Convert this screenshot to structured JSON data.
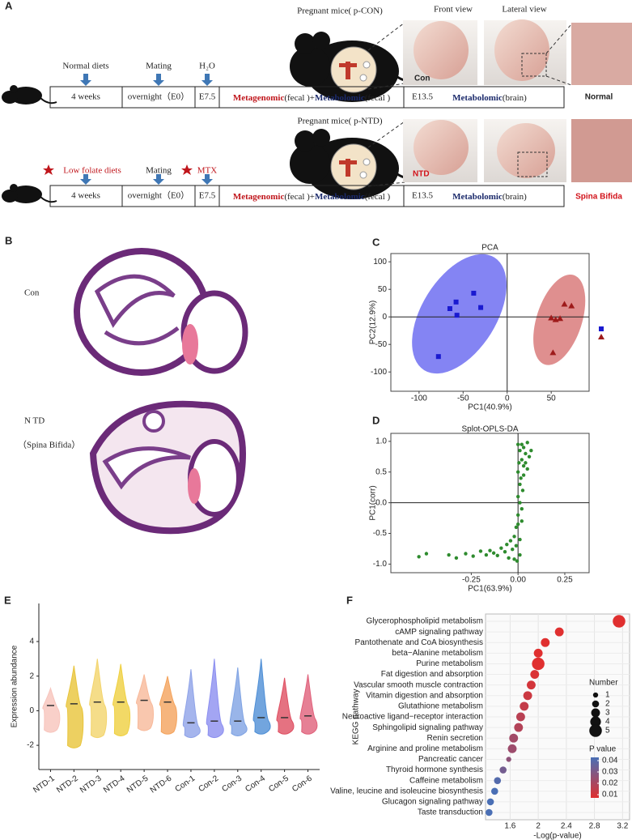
{
  "panel_a": {
    "label": "A",
    "views": [
      "Front view",
      "Lateral view"
    ],
    "top": {
      "title": "Pregnant mice( p-CON)",
      "steps": [
        "Normal diets",
        "Mating",
        "H₂O"
      ],
      "cells": [
        "4 weeks",
        "overnight（E0）",
        "E7.5"
      ],
      "metagenomic": "Metagenomic",
      "fecal_plus": "(fecal )+",
      "metabolomic": "Metabolomic",
      "fecal": "(fecal )",
      "e135": "E13.5",
      "metabolomic_brain": "Metabolomic",
      "brain": "(brain)",
      "photo_label": "Con",
      "outcome": "Normal"
    },
    "bottom": {
      "title": "Pregnant mice( p-NTD)",
      "steps": [
        "Low folate diets",
        "Mating",
        "MTX"
      ],
      "cells": [
        "4 weeks",
        "overnight（E0）",
        "E7.5"
      ],
      "metagenomic": "Metagenomic",
      "fecal_plus": "(fecal )+",
      "metabolomic": "Metabolomic",
      "fecal": "(fecal )",
      "e135": "E13.5",
      "metabolomic_brain": "Metabolomic",
      "brain": "(brain)",
      "photo_label": "NTD",
      "outcome": "Spina Bifida"
    }
  },
  "panel_b": {
    "label": "B",
    "con": "Con",
    "ntd": "N TD",
    "ntd_note": "（Spina Bifida）"
  },
  "chart_data": [
    {
      "type": "scatter",
      "panel": "C",
      "title": "PCA",
      "xlabel": "PC1(40.9%)",
      "ylabel": "PC2(12.9%)",
      "xlim": [
        -132,
        93
      ],
      "ylim": [
        -135,
        115
      ],
      "xticks": [
        -100,
        -50,
        0,
        50
      ],
      "yticks": [
        -100,
        -50,
        0,
        50,
        100
      ],
      "series": [
        {
          "marker": "square",
          "color": "#1a1ad0",
          "area_color": "#5b5bef",
          "x": [
            -78,
            -65,
            -58,
            -57,
            -38,
            -30
          ],
          "y": [
            -72,
            15,
            27,
            3,
            43,
            17
          ]
        },
        {
          "marker": "triangle",
          "color": "#9e1b1b",
          "area_color": "#d46a6a",
          "x": [
            50,
            52,
            55,
            60,
            65,
            73
          ],
          "y": [
            -2,
            -65,
            -5,
            -3,
            23,
            20
          ]
        }
      ]
    },
    {
      "type": "scatter",
      "panel": "D",
      "title": "Splot-OPLS-DA",
      "xlabel": "PC1(63.9%)",
      "ylabel": "PC1(corr)",
      "xlim": [
        -0.68,
        0.38
      ],
      "ylim": [
        -1.14,
        1.13
      ],
      "xticks": [
        {
          "value": -0.25,
          "label": "-0.25"
        },
        {
          "value": 0,
          "label": "0.00"
        },
        {
          "value": 0.25,
          "label": "0.25"
        }
      ],
      "yticks": [
        {
          "value": -1,
          "label": "-1.0"
        },
        {
          "value": -0.5,
          "label": "-0.5"
        },
        {
          "value": 0,
          "label": "0.0"
        },
        {
          "value": 0.5,
          "label": "0.5"
        },
        {
          "value": 1,
          "label": "1.0"
        }
      ],
      "series": [
        {
          "marker": "circle",
          "color": "#2e8b2e",
          "x": [
            -0.53,
            -0.49,
            -0.37,
            -0.33,
            -0.28,
            -0.24,
            -0.2,
            -0.17,
            -0.15,
            -0.13,
            -0.11,
            -0.09,
            -0.07,
            -0.06,
            -0.05,
            -0.04,
            -0.03,
            -0.02,
            -0.02,
            -0.01,
            -0.01,
            0,
            0,
            0,
            0.01,
            0.01,
            0.02,
            0.02,
            0.03,
            0.03,
            0.04,
            0.05,
            0.06,
            0.07,
            0.05,
            0.02,
            0.01,
            -0.005,
            0,
            0.015,
            0.025,
            0.04,
            0.01,
            0,
            0.02,
            0.005,
            0.01,
            0.03
          ],
          "y": [
            -0.88,
            -0.83,
            -0.85,
            -0.9,
            -0.83,
            -0.87,
            -0.79,
            -0.85,
            -0.78,
            -0.82,
            -0.86,
            -0.74,
            -0.8,
            -0.68,
            -0.9,
            -0.62,
            -0.76,
            -0.55,
            -0.92,
            -0.4,
            -0.7,
            -0.2,
            0.1,
            0.5,
            0.85,
            0.3,
            0.95,
            0.7,
            0.9,
            0.6,
            0.8,
            0.98,
            0.75,
            0.85,
            0.55,
            -0.1,
            -0.6,
            -0.95,
            0.95,
            0.4,
            0.2,
            0.65,
            0.0,
            -0.35,
            -0.3,
            0.65,
            -0.85,
            0.45
          ]
        }
      ]
    },
    {
      "type": "violin",
      "panel": "E",
      "ylabel": "Expression abundance",
      "ylim": [
        -3.4,
        6.2
      ],
      "yticks": [
        -2,
        0,
        2,
        4
      ],
      "categories": [
        "NTD-1",
        "NTD-2",
        "NTD-3",
        "NTD-4",
        "NTD-5",
        "NTD-6",
        "Con-1",
        "Con-2",
        "Con-3",
        "Con-4",
        "Con-5",
        "Con-6"
      ],
      "values": [
        0.3,
        0.4,
        0.5,
        0.5,
        0.6,
        0.5,
        -0.7,
        -0.6,
        -0.6,
        -0.4,
        -0.4,
        -0.3
      ],
      "min": [
        -1.3,
        -2.2,
        -1.6,
        -1.5,
        -1.2,
        -1.4,
        -1.6,
        -1.6,
        -1.5,
        -1.4,
        -1.4,
        -1.4
      ],
      "max": [
        1.3,
        2.6,
        3.0,
        2.7,
        2.1,
        2.0,
        2.4,
        3.0,
        2.5,
        3.0,
        1.9,
        2.1
      ],
      "colors": [
        "#f7c4bc",
        "#e8c43a",
        "#f3d46c",
        "#efd040",
        "#f8b99a",
        "#f4a35c",
        "#8fa3e8",
        "#8c8ff0",
        "#7fa3e3",
        "#4f8fd6",
        "#df4f62",
        "#e0607a"
      ]
    },
    {
      "type": "dot",
      "panel": "F",
      "xlabel": "-Log(p-value)",
      "ylabel": "KEGG pathway",
      "xlim": [
        1.25,
        3.3
      ],
      "xticks": [
        1.6,
        2.0,
        2.4,
        2.8,
        3.2
      ],
      "categories": [
        "Glycerophospholipid metabolism",
        "cAMP signaling pathway",
        "Pantothenate and CoA biosynthesis",
        "beta−Alanine metabolism",
        "Purine metabolism",
        "Fat digestion and absorption",
        "Vascular smooth muscle contraction",
        "Vitamin digestion and absorption",
        "Glutathione metabolism",
        "Neuroactive ligand−receptor interaction",
        "Sphingolipid signaling pathway",
        "Renin secretion",
        "Arginine and proline metabolism",
        "Pancreatic cancer",
        "Thyroid hormone synthesis",
        "Caffeine metabolism",
        "Valine, leucine and isoleucine biosynthesis",
        "Glucagon signaling pathway",
        "Taste transduction"
      ],
      "values": [
        3.15,
        2.3,
        2.1,
        2.0,
        2.0,
        1.95,
        1.9,
        1.85,
        1.8,
        1.75,
        1.72,
        1.65,
        1.63,
        1.58,
        1.5,
        1.42,
        1.38,
        1.32,
        1.3
      ],
      "sizes": [
        5,
        3,
        3,
        3,
        5,
        3,
        3,
        3,
        3,
        3,
        3,
        3,
        3,
        1,
        2,
        2,
        2,
        2,
        2
      ],
      "size_title": "Number",
      "size_legend": [
        1,
        2,
        3,
        4,
        5
      ],
      "color_title": "P value",
      "color_ticks": [
        0.04,
        0.03,
        0.02,
        0.01
      ],
      "colors": [
        "#4a6fb5",
        "#e03030"
      ]
    }
  ]
}
